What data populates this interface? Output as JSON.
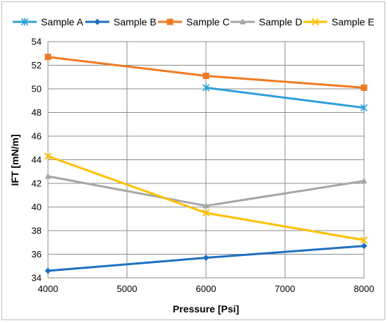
{
  "chart_data": {
    "type": "line",
    "title": "",
    "xlabel": "Pressure [Psi]",
    "ylabel": "IFT [mN/m]",
    "xlim": [
      4000,
      8000
    ],
    "ylim": [
      34,
      54
    ],
    "x_ticks": [
      4000,
      5000,
      6000,
      7000,
      8000
    ],
    "y_ticks": [
      34,
      36,
      38,
      40,
      42,
      44,
      46,
      48,
      50,
      52,
      54
    ],
    "grid": true,
    "legend_position": "top",
    "series": [
      {
        "name": "Sample A",
        "color": "#2e9fd9",
        "marker": "asterisk",
        "x": [
          6000,
          8000
        ],
        "y": [
          50.1,
          48.4
        ]
      },
      {
        "name": "Sample B",
        "color": "#1f6fbf",
        "marker": "diamond",
        "x": [
          4000,
          6000,
          8000
        ],
        "y": [
          34.6,
          35.7,
          36.7
        ]
      },
      {
        "name": "Sample C",
        "color": "#f07a22",
        "marker": "square",
        "x": [
          4000,
          6000,
          8000
        ],
        "y": [
          52.7,
          51.1,
          50.1
        ]
      },
      {
        "name": "Sample D",
        "color": "#a5a5a5",
        "marker": "triangle",
        "x": [
          4000,
          6000,
          8000
        ],
        "y": [
          42.6,
          40.1,
          42.2
        ]
      },
      {
        "name": "Sample E",
        "color": "#ffc000",
        "marker": "x",
        "x": [
          4000,
          6000,
          8000
        ],
        "y": [
          44.3,
          39.5,
          37.2
        ]
      }
    ]
  }
}
